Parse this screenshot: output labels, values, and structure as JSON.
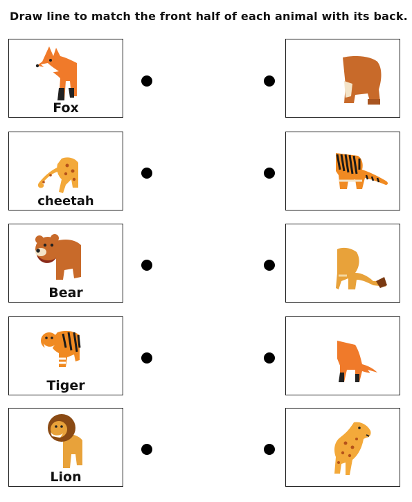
{
  "worksheet": {
    "instruction": "Draw line to match the front half of each animal with its back.",
    "rows": [
      {
        "front_label": "Fox",
        "front_icon": "fox-front-half-icon",
        "back_icon": "bear-back-half-icon"
      },
      {
        "front_label": "cheetah",
        "front_icon": "cheetah-front-half-icon",
        "back_icon": "tiger-back-half-icon"
      },
      {
        "front_label": "Bear",
        "front_icon": "bear-front-half-icon",
        "back_icon": "lion-back-half-icon"
      },
      {
        "front_label": "Tiger",
        "front_icon": "tiger-front-half-icon",
        "back_icon": "fox-back-half-icon"
      },
      {
        "front_label": "Lion",
        "front_icon": "lion-front-half-icon",
        "back_icon": "cheetah-back-half-icon"
      }
    ],
    "colors": {
      "fox": "#f07a2a",
      "cheetah": "#f3a93a",
      "bear": "#c86a2a",
      "tiger": "#f08a22",
      "lion": "#e8a23a",
      "stripe": "#1a1a1a"
    }
  }
}
